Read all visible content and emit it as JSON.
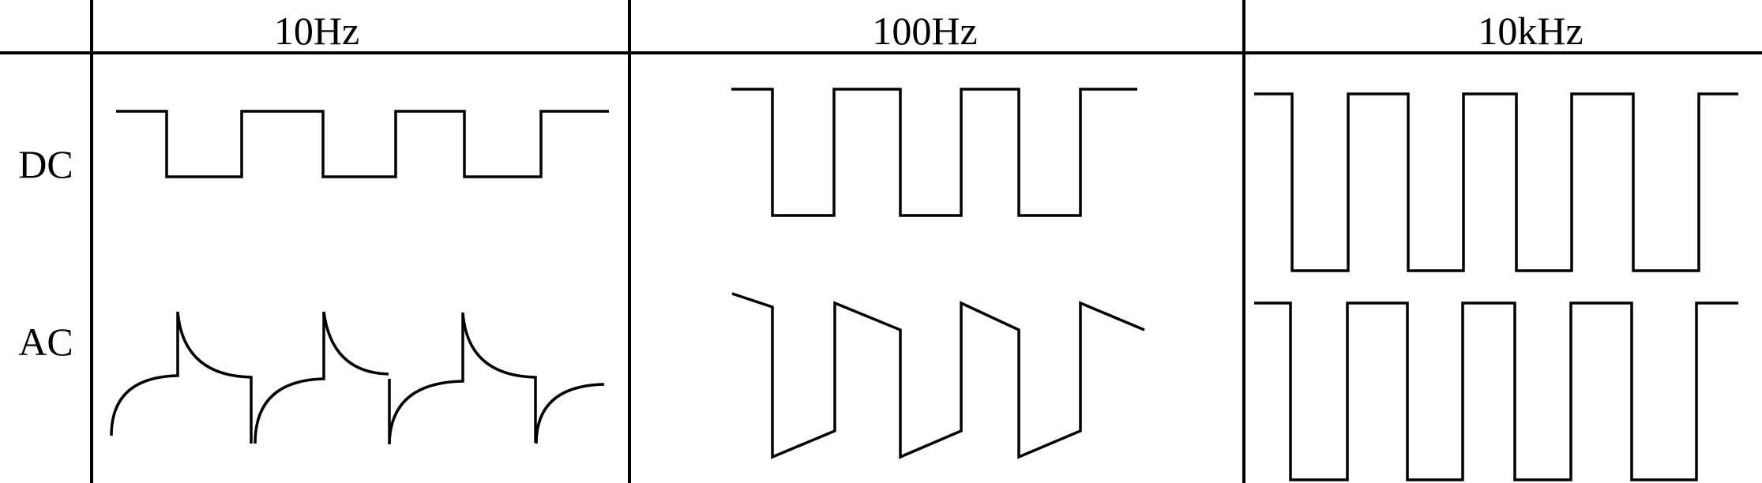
{
  "columns": [
    {
      "label": "10Hz"
    },
    {
      "label": "100Hz"
    },
    {
      "label": "10kHz"
    }
  ],
  "rows": [
    {
      "label": "DC"
    },
    {
      "label": "AC"
    }
  ]
}
